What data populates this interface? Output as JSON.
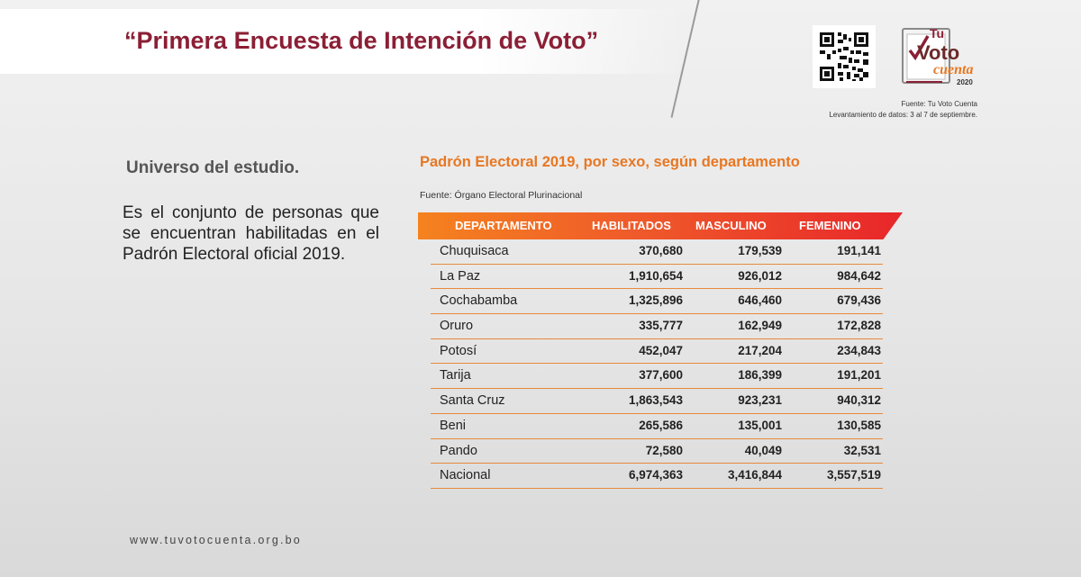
{
  "header": {
    "title": "“Primera Encuesta de Intención de Voto”",
    "logo_text": {
      "line1": "Tu",
      "line2": "Voto",
      "line3": "cuenta",
      "year": "2020"
    },
    "source_line1": "Fuente: Tu Voto Cuenta",
    "source_line2": "Levantamiento de datos: 3 al 7 de septiembre."
  },
  "left": {
    "heading": "Universo del estudio.",
    "description": "Es el conjunto de personas que se encuentran habilitadas en el Padrón Electoral oficial 2019."
  },
  "table": {
    "title": "Padrón Electoral 2019, por sexo, según departamento",
    "source": "Fuente: Órgano Electoral Plurinacional",
    "columns": [
      "DEPARTAMENTO",
      "HABILITADOS",
      "MASCULINO",
      "FEMENINO"
    ],
    "rows": [
      [
        "Chuquisaca",
        "370,680",
        "179,539",
        "191,141"
      ],
      [
        "La Paz",
        "1,910,654",
        "926,012",
        "984,642"
      ],
      [
        "Cochabamba",
        "1,325,896",
        "646,460",
        "679,436"
      ],
      [
        "Oruro",
        "335,777",
        "162,949",
        "172,828"
      ],
      [
        "Potosí",
        "452,047",
        "217,204",
        "234,843"
      ],
      [
        "Tarija",
        "377,600",
        "186,399",
        "191,201"
      ],
      [
        "Santa Cruz",
        "1,863,543",
        "923,231",
        "940,312"
      ],
      [
        "Beni",
        "265,586",
        "135,001",
        "130,585"
      ],
      [
        "Pando",
        "72,580",
        "40,049",
        "32,531"
      ],
      [
        "Nacional",
        "6,974,363",
        "3,416,844",
        "3,557,519"
      ]
    ]
  },
  "footer": {
    "website": "www.tuvotocuenta.org.bo"
  },
  "colors": {
    "title": "#8b1f35",
    "accent_orange": "#e87722",
    "header_red": "#e8262a"
  }
}
